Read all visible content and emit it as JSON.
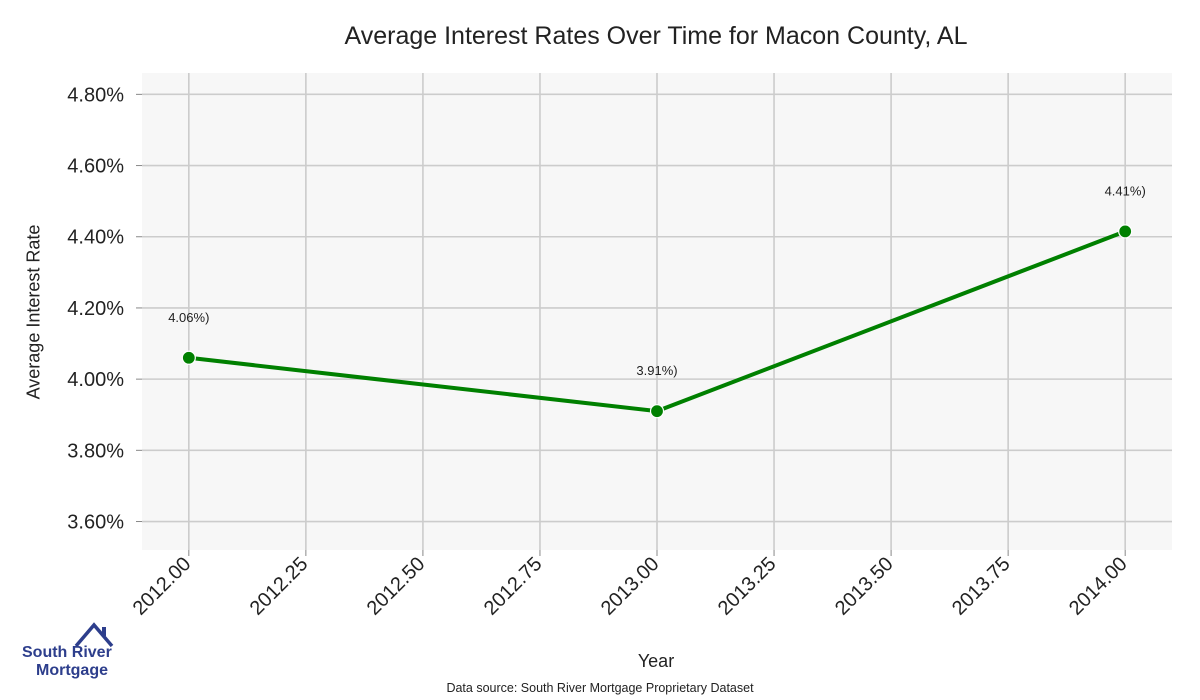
{
  "chart_data": {
    "type": "line",
    "title": "Average Interest Rates Over Time for Macon County, AL",
    "xlabel": "Year",
    "ylabel": "Average Interest Rate",
    "x": [
      2012,
      2013,
      2014
    ],
    "series": [
      {
        "values": [
          4.06,
          3.91,
          4.415
        ],
        "labels": [
          "4.06%)",
          "3.91%)",
          "4.41%)"
        ]
      }
    ],
    "xlim": [
      2011.9,
      2014.1
    ],
    "ylim": [
      3.52,
      4.86
    ],
    "xticks": [
      2012.0,
      2012.25,
      2012.5,
      2012.75,
      2013.0,
      2013.25,
      2013.5,
      2013.75,
      2014.0
    ],
    "xtick_labels": [
      "2012.00",
      "2012.25",
      "2012.50",
      "2012.75",
      "2013.00",
      "2013.25",
      "2013.50",
      "2013.75",
      "2014.00"
    ],
    "yticks": [
      3.6,
      3.8,
      4.0,
      4.2,
      4.4,
      4.6,
      4.8
    ],
    "ytick_labels": [
      "3.60%",
      "3.80%",
      "4.00%",
      "4.20%",
      "4.40%",
      "4.60%",
      "4.80%"
    ],
    "grid": true,
    "colors": {
      "line": "#008000",
      "plot_bg": "#f7f7f7",
      "grid": "#cccccc"
    }
  },
  "source": "Data source: South River Mortgage Proprietary Dataset",
  "logo": {
    "line1": "South River",
    "line2": "Mortgage"
  }
}
